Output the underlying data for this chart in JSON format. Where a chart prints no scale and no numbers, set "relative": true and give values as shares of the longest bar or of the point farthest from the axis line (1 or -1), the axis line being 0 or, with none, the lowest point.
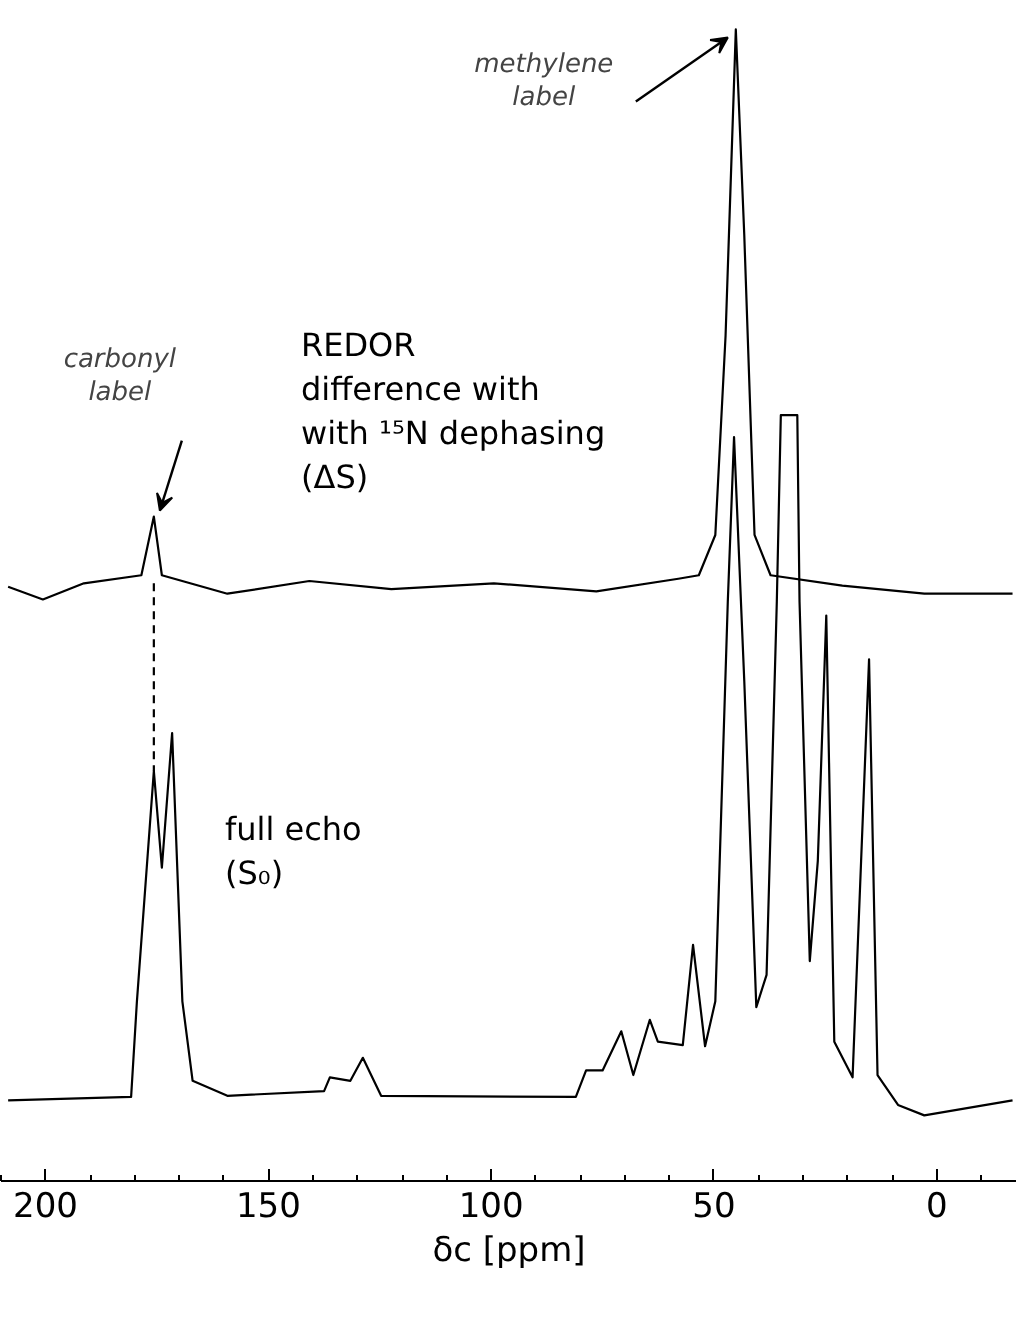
{
  "chart_data": {
    "type": "line",
    "relative": true,
    "xlabel": "δc [ppm]",
    "xlim": [
      210,
      -18
    ],
    "xticks": [
      200,
      150,
      100,
      50,
      0
    ],
    "grid": false,
    "legend": false,
    "tick_labels": "x",
    "marker": "none",
    "series": [
      {
        "name": "REDOR\ndifference with\nwith ¹⁵N dephasing\n(ΔS)",
        "color": "#000000",
        "line_style": "solid",
        "x": [
          208.4,
          200.6,
          191.4,
          178.5,
          175.7,
          173.9,
          159.2,
          140.8,
          122.4,
          99.4,
          76.4,
          58.0,
          53.4,
          49.7,
          47.4,
          45.1,
          43.2,
          40.9,
          37.3,
          21.2,
          2.8,
          -17.0
        ],
        "values": [
          0.516,
          0.505,
          0.519,
          0.526,
          0.577,
          0.526,
          0.51,
          0.521,
          0.514,
          0.519,
          0.512,
          0.523,
          0.526,
          0.561,
          0.734,
          1.0,
          0.821,
          0.561,
          0.526,
          0.517,
          0.51,
          0.51
        ]
      },
      {
        "name": "full echo\n(S₀)",
        "color": "#000000",
        "line_style": "solid",
        "x": [
          208.4,
          180.8,
          179.5,
          175.7,
          173.9,
          171.6,
          169.3,
          167.0,
          159.2,
          137.5,
          136.2,
          131.6,
          128.8,
          124.7,
          81.0,
          78.7,
          75.0,
          70.8,
          68.1,
          64.4,
          62.6,
          57.0,
          54.7,
          52.0,
          49.7,
          46.9,
          45.5,
          43.2,
          40.5,
          38.2,
          35.9,
          35.0,
          31.3,
          30.8,
          28.5,
          26.7,
          24.8,
          23.0,
          18.9,
          15.2,
          13.3,
          8.7,
          2.8,
          -17.0
        ],
        "values": [
          0.07,
          0.073,
          0.156,
          0.356,
          0.272,
          0.389,
          0.156,
          0.087,
          0.074,
          0.078,
          0.09,
          0.087,
          0.107,
          0.074,
          0.073,
          0.096,
          0.096,
          0.13,
          0.092,
          0.14,
          0.121,
          0.118,
          0.205,
          0.117,
          0.156,
          0.503,
          0.646,
          0.434,
          0.151,
          0.179,
          0.503,
          0.665,
          0.665,
          0.503,
          0.191,
          0.278,
          0.491,
          0.121,
          0.09,
          0.453,
          0.092,
          0.066,
          0.057,
          0.07
        ]
      },
      {
        "color": "#000000",
        "line_style": "dashed",
        "x": [
          175.7,
          175.7
        ],
        "values": [
          0.519,
          0.356
        ]
      }
    ],
    "annotations": [
      {
        "text": "methylene\nlabel",
        "x": 45.1,
        "y": 1.0
      },
      {
        "text": "carbonyl\nlabel",
        "x": 175.7,
        "y": 0.577
      }
    ]
  }
}
